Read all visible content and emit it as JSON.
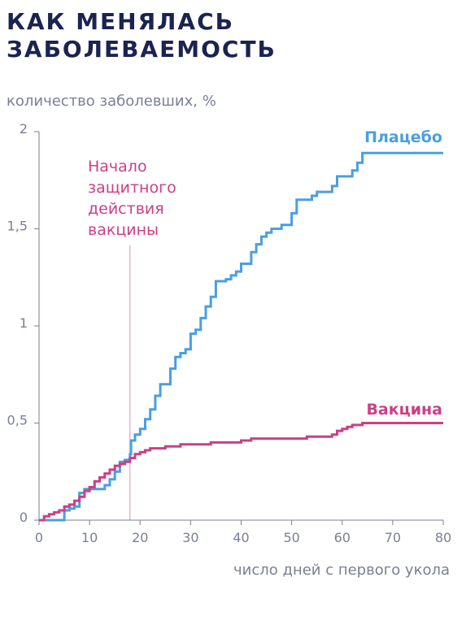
{
  "colors": {
    "title": "#1b2350",
    "placebo": "#4a9fe0",
    "vaccine": "#cc3f86",
    "axis": "#7a7f93"
  },
  "chart_data": {
    "type": "line",
    "step": true,
    "title_lines": [
      "Как менялась",
      "заболеваемость"
    ],
    "ylabel": "количество заболевших, %",
    "xlabel": "число дней с первого укола",
    "xlim": [
      0,
      80
    ],
    "ylim": [
      0,
      2
    ],
    "x_ticks": [
      "0",
      "10",
      "20",
      "30",
      "40",
      "50",
      "60",
      "70",
      "80"
    ],
    "y_ticks": [
      "0",
      "0,5",
      "1",
      "1,5",
      "2"
    ],
    "grid": false,
    "annotation": {
      "x": 18,
      "lines": [
        "Начало",
        "защитного",
        "действия",
        "вакцины"
      ]
    },
    "series": [
      {
        "name": "Плацебо",
        "points": [
          [
            0,
            0
          ],
          [
            5,
            0.05
          ],
          [
            6,
            0.06
          ],
          [
            7,
            0.07
          ],
          [
            8,
            0.14
          ],
          [
            9,
            0.16
          ],
          [
            10,
            0.16
          ],
          [
            12,
            0.16
          ],
          [
            13,
            0.18
          ],
          [
            14,
            0.21
          ],
          [
            15,
            0.25
          ],
          [
            16,
            0.3
          ],
          [
            17,
            0.31
          ],
          [
            18,
            0.34
          ],
          [
            18.2,
            0.41
          ],
          [
            19,
            0.44
          ],
          [
            20,
            0.47
          ],
          [
            21,
            0.52
          ],
          [
            22,
            0.57
          ],
          [
            23,
            0.64
          ],
          [
            24,
            0.7
          ],
          [
            26,
            0.78
          ],
          [
            27,
            0.84
          ],
          [
            28,
            0.86
          ],
          [
            29,
            0.88
          ],
          [
            30,
            0.96
          ],
          [
            31,
            0.98
          ],
          [
            32,
            1.04
          ],
          [
            33,
            1.1
          ],
          [
            34,
            1.15
          ],
          [
            35,
            1.23
          ],
          [
            37,
            1.24
          ],
          [
            38,
            1.26
          ],
          [
            39,
            1.28
          ],
          [
            40,
            1.32
          ],
          [
            42,
            1.38
          ],
          [
            43,
            1.42
          ],
          [
            44,
            1.46
          ],
          [
            45,
            1.48
          ],
          [
            46,
            1.5
          ],
          [
            48,
            1.52
          ],
          [
            50,
            1.58
          ],
          [
            51,
            1.65
          ],
          [
            54,
            1.67
          ],
          [
            55,
            1.69
          ],
          [
            58,
            1.72
          ],
          [
            59,
            1.77
          ],
          [
            62,
            1.8
          ],
          [
            63,
            1.84
          ],
          [
            64,
            1.89
          ],
          [
            80,
            1.89
          ]
        ]
      },
      {
        "name": "Вакцина",
        "points": [
          [
            0,
            0
          ],
          [
            1,
            0.02
          ],
          [
            2,
            0.03
          ],
          [
            3,
            0.04
          ],
          [
            4,
            0.05
          ],
          [
            5,
            0.07
          ],
          [
            6,
            0.08
          ],
          [
            7,
            0.1
          ],
          [
            8,
            0.12
          ],
          [
            9,
            0.15
          ],
          [
            10,
            0.17
          ],
          [
            11,
            0.2
          ],
          [
            12,
            0.22
          ],
          [
            13,
            0.24
          ],
          [
            14,
            0.26
          ],
          [
            15,
            0.28
          ],
          [
            16,
            0.29
          ],
          [
            17,
            0.3
          ],
          [
            18,
            0.32
          ],
          [
            19,
            0.34
          ],
          [
            20,
            0.35
          ],
          [
            21,
            0.36
          ],
          [
            22,
            0.37
          ],
          [
            25,
            0.38
          ],
          [
            28,
            0.39
          ],
          [
            30,
            0.39
          ],
          [
            34,
            0.4
          ],
          [
            38,
            0.4
          ],
          [
            40,
            0.41
          ],
          [
            42,
            0.42
          ],
          [
            52,
            0.42
          ],
          [
            53,
            0.43
          ],
          [
            58,
            0.44
          ],
          [
            59,
            0.46
          ],
          [
            60,
            0.47
          ],
          [
            61,
            0.48
          ],
          [
            62,
            0.49
          ],
          [
            64,
            0.5
          ],
          [
            80,
            0.5
          ]
        ]
      }
    ]
  }
}
